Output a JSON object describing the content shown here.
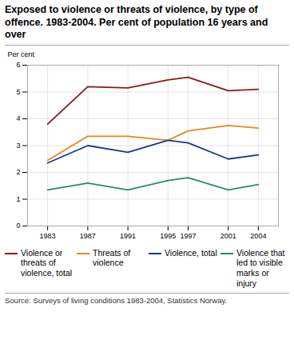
{
  "chart_data": {
    "type": "line",
    "title": "Exposed to violence or threats of violence, by type of offence. 1983-2004. Per cent of population 16 years and over",
    "ylabel": "Per cent",
    "source": "Source: Surveys of living conditions 1983-2004, Statistics Norway.",
    "x": [
      1983,
      1987,
      1991,
      1995,
      1997,
      2001,
      2004
    ],
    "series": [
      {
        "name": "Violence or threats of violence, total",
        "color": "#8B1A1A",
        "values": [
          3.8,
          5.2,
          5.15,
          5.45,
          5.55,
          5.05,
          5.1
        ]
      },
      {
        "name": "Threats of violence",
        "color": "#E8871A",
        "values": [
          2.45,
          3.35,
          3.35,
          3.2,
          3.55,
          3.75,
          3.65
        ]
      },
      {
        "name": "Violence, total",
        "color": "#1A3A8B",
        "values": [
          2.35,
          3.0,
          2.75,
          3.2,
          3.1,
          2.5,
          2.65
        ]
      },
      {
        "name": "Violence that led to visible marks or injury",
        "color": "#2A8B6A",
        "values": [
          1.35,
          1.6,
          1.35,
          1.7,
          1.8,
          1.35,
          1.55
        ]
      }
    ],
    "xlim": [
      1981,
      2006
    ],
    "xticks": [
      1983,
      1987,
      1991,
      1995,
      1997,
      2001,
      2004
    ],
    "ylim": [
      0,
      6
    ],
    "yticks": [
      0,
      1,
      2,
      3,
      4,
      5,
      6
    ],
    "grid": true,
    "legend": "bottom"
  }
}
